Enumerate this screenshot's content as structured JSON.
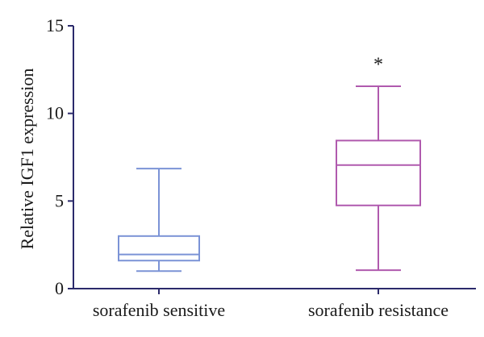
{
  "chart_data": {
    "type": "box",
    "ylabel": "Relative IGF1 expression",
    "xlabel": "",
    "ylim": [
      0,
      15
    ],
    "yticks": [
      0,
      5,
      10,
      15
    ],
    "grid": false,
    "axis_color": "#2b2a6b",
    "categories": [
      "sorafenib sensitive",
      "sorafenib resistance"
    ],
    "boxes": [
      {
        "name": "sorafenib sensitive",
        "color": "#7b93d6",
        "min": 1.0,
        "q1": 1.6,
        "median": 1.95,
        "q3": 3.0,
        "max": 6.85
      },
      {
        "name": "sorafenib resistance",
        "color": "#b05aae",
        "min": 1.05,
        "q1": 4.75,
        "median": 7.05,
        "q3": 8.45,
        "max": 11.55
      }
    ],
    "annotations": [
      {
        "text": "*",
        "category": "sorafenib resistance",
        "y": 12.9
      }
    ]
  }
}
